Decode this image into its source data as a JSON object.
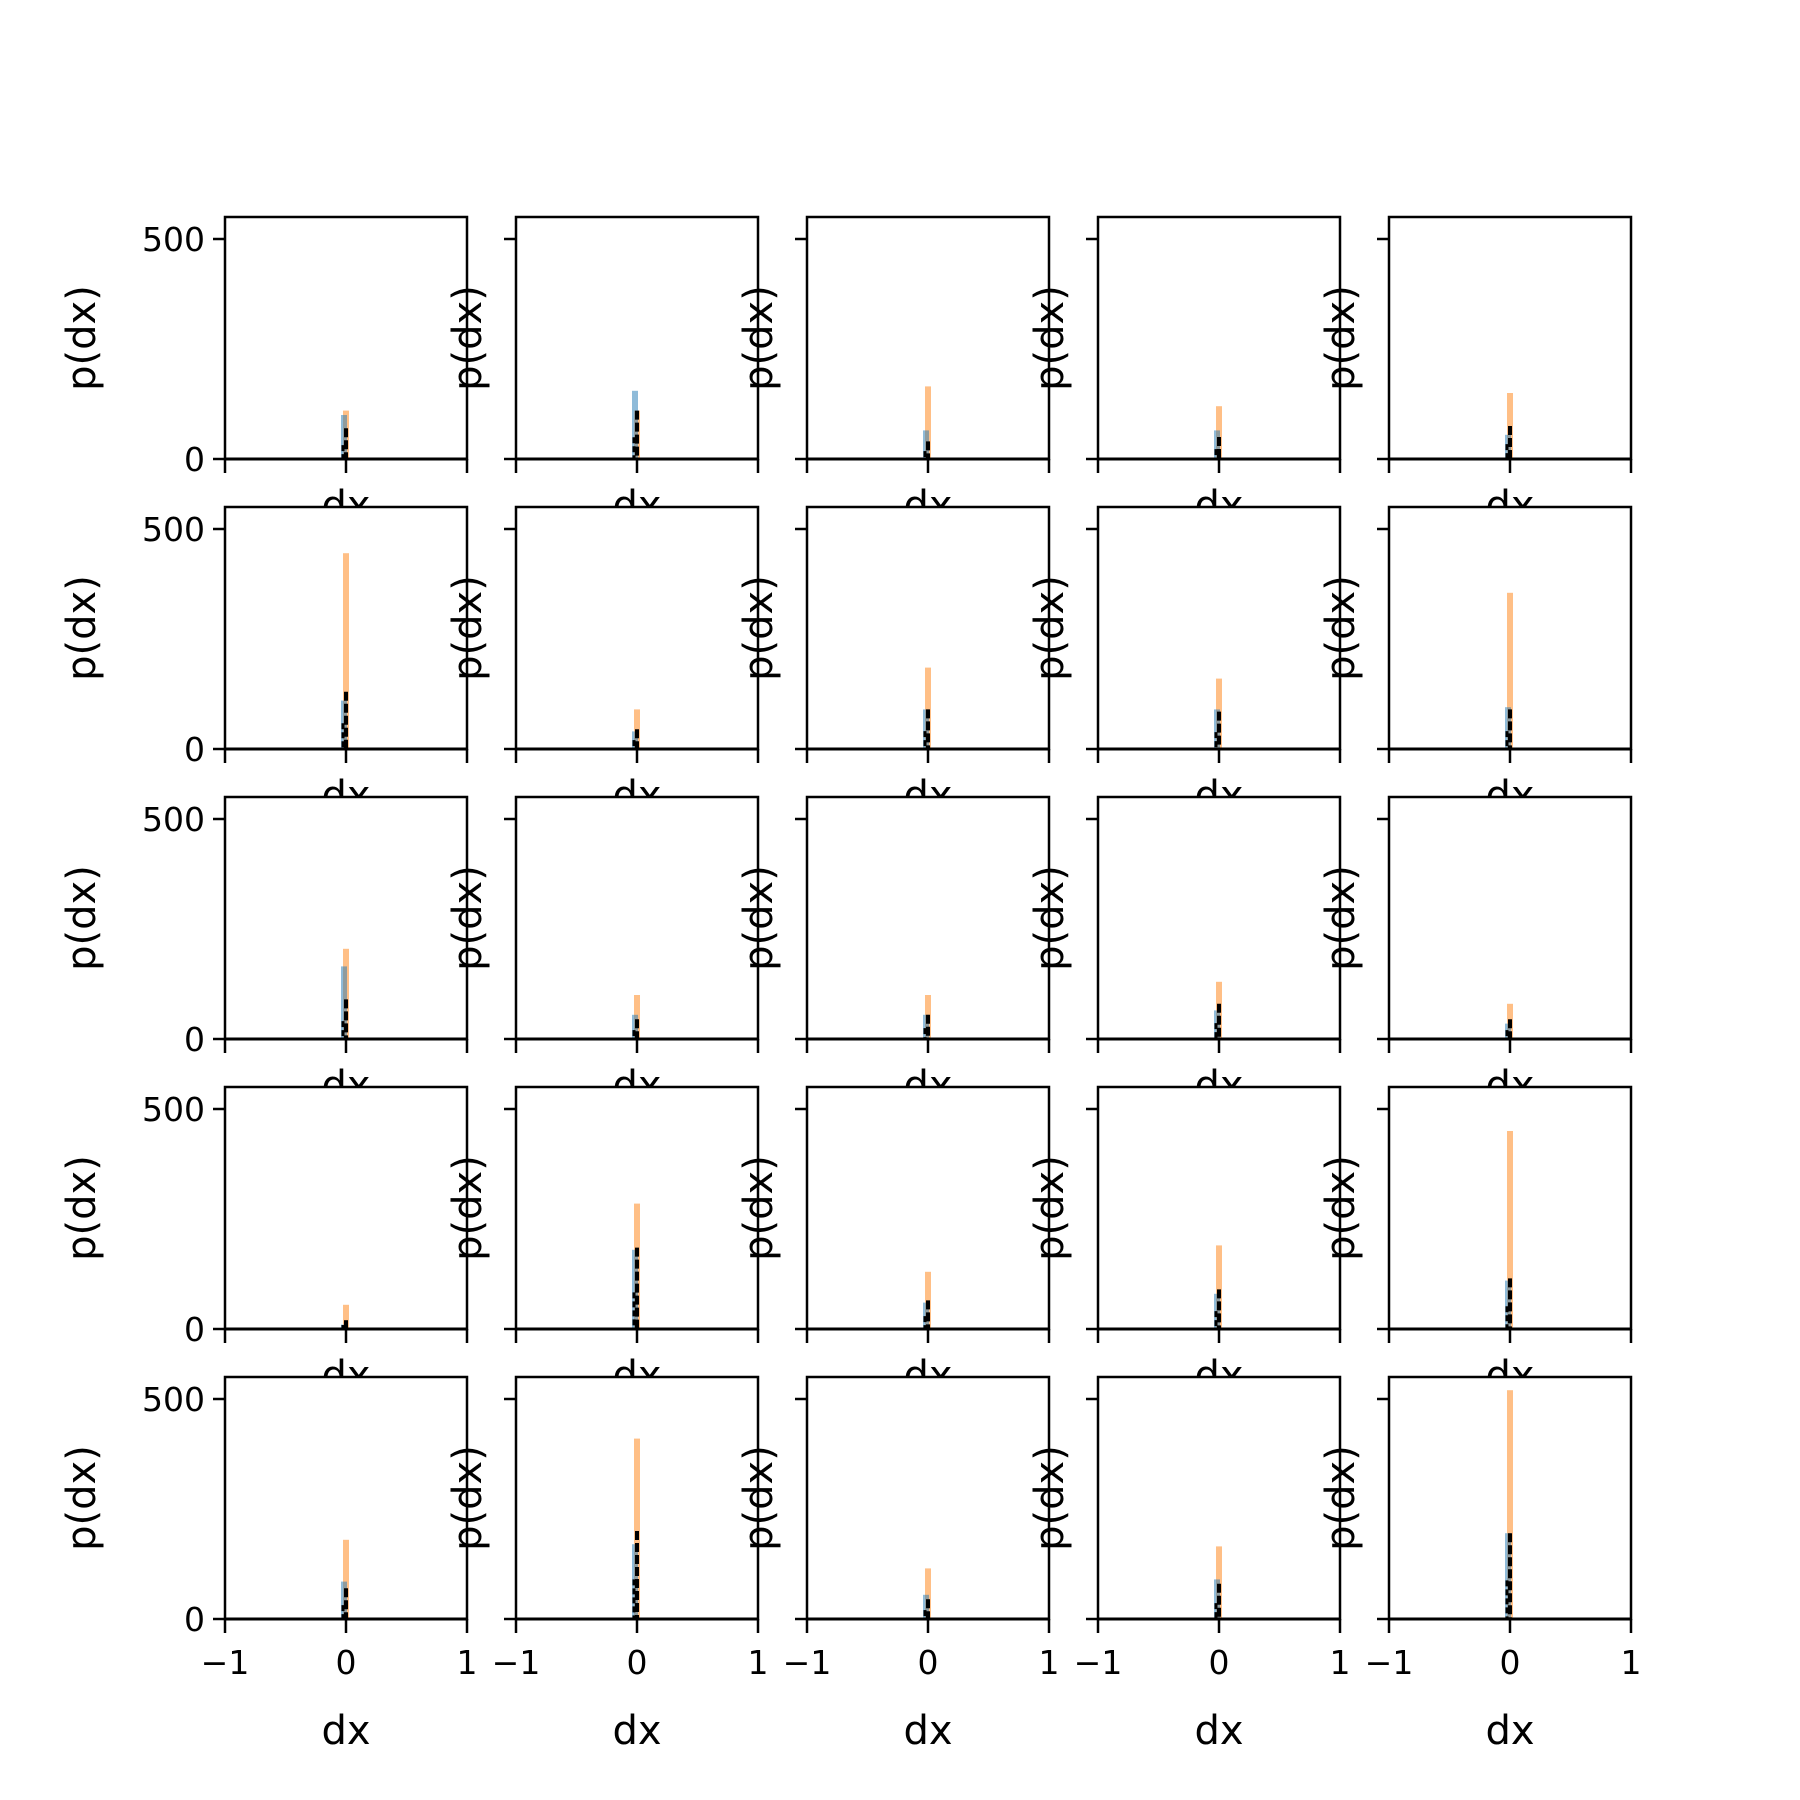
{
  "colors": {
    "blue": "#1f77b4",
    "orange": "#ff7f0e",
    "black": "#000000",
    "frame": "#000000"
  },
  "chart_data": {
    "type": "grid-of-histograms",
    "rows": 5,
    "cols": 5,
    "xlabel": "dx",
    "ylabel": "p(dx)",
    "xlim": [
      -1,
      1
    ],
    "ylim": [
      0,
      550
    ],
    "xticks": [
      -1,
      0,
      1
    ],
    "xtick_labels": [
      "−1",
      "0",
      "1"
    ],
    "yticks": [
      0,
      500
    ],
    "ytick_labels": [
      "0",
      "500"
    ],
    "series_legend": "none",
    "panels": [
      {
        "row": 0,
        "col": 0,
        "orange": 110,
        "blue": 100,
        "black": 70
      },
      {
        "row": 0,
        "col": 1,
        "orange": 110,
        "blue": 155,
        "black": 110
      },
      {
        "row": 0,
        "col": 2,
        "orange": 165,
        "blue": 65,
        "black": 40
      },
      {
        "row": 0,
        "col": 3,
        "orange": 120,
        "blue": 65,
        "black": 50
      },
      {
        "row": 0,
        "col": 4,
        "orange": 150,
        "blue": 55,
        "black": 75
      },
      {
        "row": 1,
        "col": 0,
        "orange": 445,
        "blue": 110,
        "black": 130
      },
      {
        "row": 1,
        "col": 1,
        "orange": 90,
        "blue": 40,
        "black": 45
      },
      {
        "row": 1,
        "col": 2,
        "orange": 185,
        "blue": 90,
        "black": 90
      },
      {
        "row": 1,
        "col": 3,
        "orange": 160,
        "blue": 90,
        "black": 85
      },
      {
        "row": 1,
        "col": 4,
        "orange": 355,
        "blue": 95,
        "black": 90
      },
      {
        "row": 2,
        "col": 0,
        "orange": 205,
        "blue": 165,
        "black": 90
      },
      {
        "row": 2,
        "col": 1,
        "orange": 100,
        "blue": 55,
        "black": 45
      },
      {
        "row": 2,
        "col": 2,
        "orange": 100,
        "blue": 55,
        "black": 55
      },
      {
        "row": 2,
        "col": 3,
        "orange": 130,
        "blue": 65,
        "black": 80
      },
      {
        "row": 2,
        "col": 4,
        "orange": 80,
        "blue": 35,
        "black": 45
      },
      {
        "row": 3,
        "col": 0,
        "orange": 55,
        "blue": 10,
        "black": 20
      },
      {
        "row": 3,
        "col": 1,
        "orange": 285,
        "blue": 180,
        "black": 185
      },
      {
        "row": 3,
        "col": 2,
        "orange": 130,
        "blue": 60,
        "black": 65
      },
      {
        "row": 3,
        "col": 3,
        "orange": 190,
        "blue": 80,
        "black": 90
      },
      {
        "row": 3,
        "col": 4,
        "orange": 450,
        "blue": 110,
        "black": 115
      },
      {
        "row": 4,
        "col": 0,
        "orange": 180,
        "blue": 85,
        "black": 70
      },
      {
        "row": 4,
        "col": 1,
        "orange": 410,
        "blue": 170,
        "black": 200
      },
      {
        "row": 4,
        "col": 2,
        "orange": 115,
        "blue": 55,
        "black": 45
      },
      {
        "row": 4,
        "col": 3,
        "orange": 165,
        "blue": 90,
        "black": 80
      },
      {
        "row": 4,
        "col": 4,
        "orange": 520,
        "blue": 195,
        "black": 195
      }
    ]
  }
}
